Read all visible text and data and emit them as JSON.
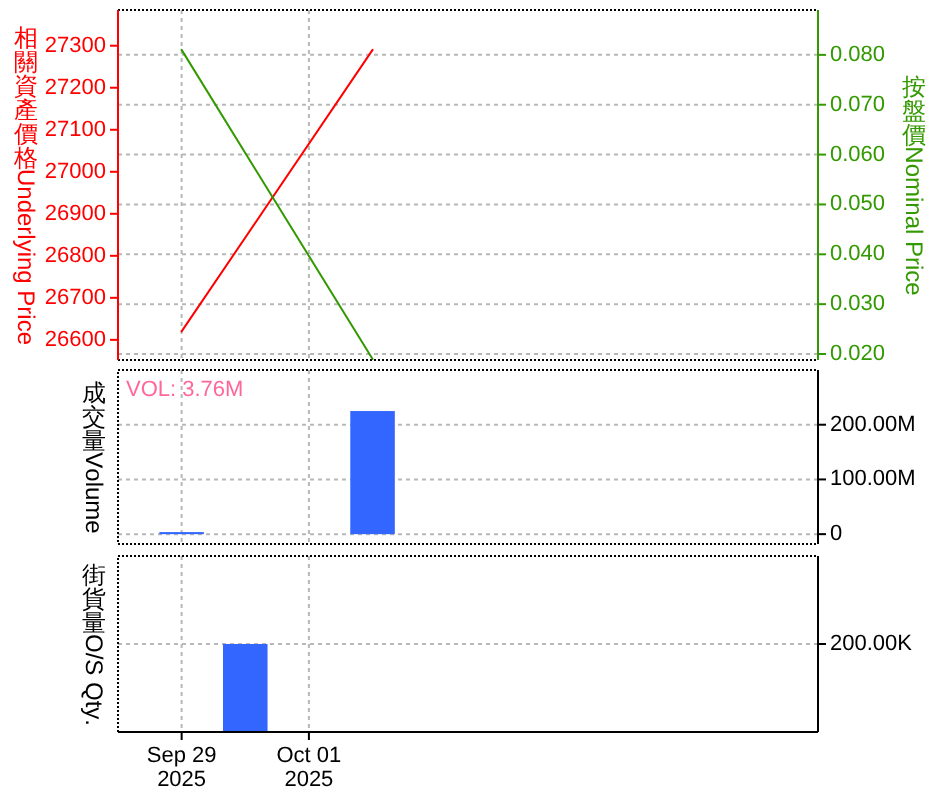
{
  "chart_data": [
    {
      "type": "line",
      "ylabel": "相關資產價格Underlying Price",
      "y2label": "按盤價Nominal Price",
      "x": [
        "2025-09-29",
        "2025-10-02"
      ],
      "xlim": [
        "2025-09-28",
        "2025-10-09"
      ],
      "xticks": [
        {
          "value": "2025-09-29",
          "label": null
        },
        {
          "value": "2025-10-01",
          "label": null
        }
      ],
      "ylim": [
        26552,
        27385
      ],
      "yticks": [
        26600,
        26700,
        26800,
        26900,
        27000,
        27100,
        27200,
        27300
      ],
      "y2lim": [
        0.0188,
        0.089
      ],
      "y2ticks": [
        {
          "value": 0.02,
          "label": "0.020"
        },
        {
          "value": 0.03,
          "label": "0.030"
        },
        {
          "value": 0.04,
          "label": "0.040"
        },
        {
          "value": 0.05,
          "label": "0.050"
        },
        {
          "value": 0.06,
          "label": "0.060"
        },
        {
          "value": 0.07,
          "label": "0.070"
        },
        {
          "value": 0.08,
          "label": "0.080"
        }
      ],
      "series": [
        {
          "color": "#ff0000",
          "values": [
            26620,
            27290
          ]
        },
        {
          "color": "#339900",
          "values": [
            0.081,
            0.019
          ],
          "axis": "y2"
        }
      ],
      "grid": true,
      "tick_labels": "y"
    },
    {
      "type": "bar",
      "ylabel": "成交量Volume",
      "x": [
        "2025-09-29",
        "2025-10-02"
      ],
      "values": [
        3760000,
        225000000
      ],
      "color": "#3366ff",
      "xlim": [
        "2025-09-28",
        "2025-10-09"
      ],
      "xticks": [
        {
          "value": "2025-09-29",
          "label": null
        },
        {
          "value": "2025-10-01",
          "label": null
        }
      ],
      "ylim": [
        -18000000,
        300000000
      ],
      "yticks": [
        0,
        {
          "value": 100000000,
          "label": "100.00M"
        },
        {
          "value": 200000000,
          "label": "200.00M"
        }
      ],
      "annotations": [
        "VOL: 3.76M"
      ],
      "grid": true,
      "tick_labels": "y"
    },
    {
      "type": "bar",
      "ylabel": "街貨量O/S Qty.",
      "x": [
        "2025-09-30"
      ],
      "values": [
        200000
      ],
      "color": "#3366ff",
      "xlim": [
        "2025-09-28",
        "2025-10-09"
      ],
      "xticks": [
        {
          "value": "2025-09-29",
          "label": "Sep 29\n2025"
        },
        {
          "value": "2025-10-01",
          "label": "Oct 01\n2025"
        }
      ],
      "ylim": [
        0,
        400000
      ],
      "yticks": [
        {
          "value": 200000,
          "label": "200.00K"
        }
      ],
      "grid": true
    }
  ]
}
